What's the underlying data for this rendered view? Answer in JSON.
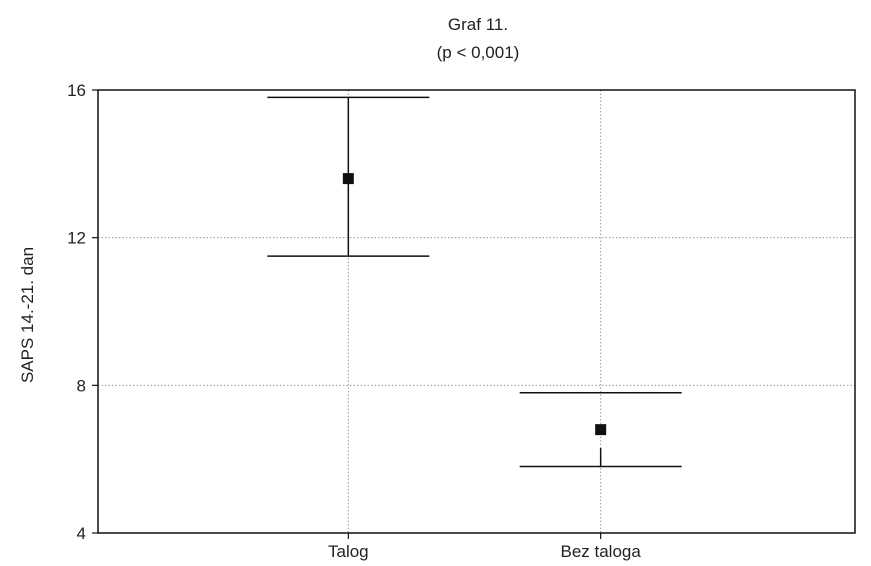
{
  "chart_data": {
    "type": "scatter",
    "title": "Graf 11.",
    "subtitle": "(p < 0,001)",
    "xlabel": "",
    "ylabel": "SAPS 14.-21. dan",
    "categories": [
      "Talog",
      "Bez taloga"
    ],
    "series": [
      {
        "values": [
          13.6,
          6.8
        ],
        "box_upper": [
          12.7,
          7.8
        ],
        "box_lower": [
          12.7,
          6.3
        ],
        "whisker_upper": [
          15.8,
          7.8
        ],
        "whisker_lower": [
          11.5,
          5.8
        ]
      }
    ],
    "ylim": [
      4,
      16
    ],
    "yticks": [
      "4",
      "8",
      "12",
      "16"
    ],
    "grid": true,
    "legend": "none"
  },
  "colors": {
    "ink": "#111111",
    "grid": "#9a9a9a",
    "background": "#ffffff"
  }
}
